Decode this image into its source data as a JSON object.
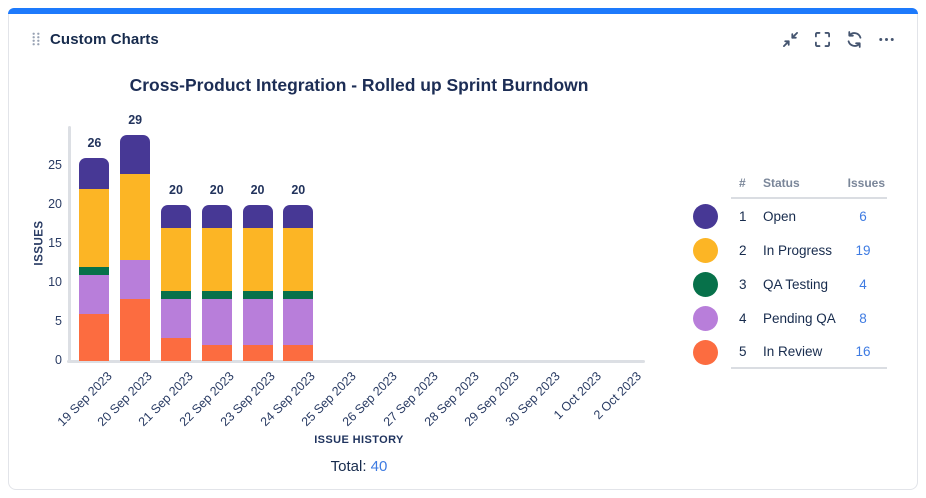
{
  "header": {
    "title": "Custom Charts",
    "accent_color": "#1d7afc",
    "actions": [
      {
        "name": "collapse",
        "icon": "collapse-icon"
      },
      {
        "name": "fullscreen",
        "icon": "fullscreen-icon"
      },
      {
        "name": "refresh",
        "icon": "refresh-icon"
      },
      {
        "name": "more",
        "icon": "ellipsis-icon"
      }
    ]
  },
  "chart_data": {
    "type": "bar",
    "stacked": true,
    "title": "Cross-Product Integration - Rolled up Sprint Burndown",
    "xlabel": "ISSUE HISTORY",
    "ylabel": "ISSUES",
    "ylim": [
      0,
      30
    ],
    "yticks": [
      0,
      5,
      10,
      15,
      20,
      25
    ],
    "grid": false,
    "legend_position": "right",
    "categories": [
      "19 Sep 2023",
      "20 Sep 2023",
      "21 Sep 2023",
      "22 Sep 2023",
      "23 Sep 2023",
      "24 Sep 2023",
      "25 Sep 2023",
      "26 Sep 2023",
      "27 Sep 2023",
      "28 Sep 2023",
      "29 Sep 2023",
      "30 Sep 2023",
      "1 Oct 2023",
      "2 Oct 2023"
    ],
    "series": [
      {
        "name": "In Review",
        "color": "#fc6c40",
        "values": [
          6,
          8,
          3,
          2,
          2,
          2,
          0,
          0,
          0,
          0,
          0,
          0,
          0,
          0
        ]
      },
      {
        "name": "Pending QA",
        "color": "#b87eda",
        "values": [
          5,
          5,
          5,
          6,
          6,
          6,
          0,
          0,
          0,
          0,
          0,
          0,
          0,
          0
        ]
      },
      {
        "name": "QA Testing",
        "color": "#07714a",
        "values": [
          1,
          0,
          1,
          1,
          1,
          1,
          0,
          0,
          0,
          0,
          0,
          0,
          0,
          0
        ]
      },
      {
        "name": "In Progress",
        "color": "#fcb525",
        "values": [
          10,
          11,
          8,
          8,
          8,
          8,
          0,
          0,
          0,
          0,
          0,
          0,
          0,
          0
        ]
      },
      {
        "name": "Open",
        "color": "#473895",
        "values": [
          4,
          5,
          3,
          3,
          3,
          3,
          0,
          0,
          0,
          0,
          0,
          0,
          0,
          0
        ]
      }
    ],
    "bar_total_labels": [
      "26",
      "29",
      "20",
      "20",
      "20",
      "20",
      "",
      "",
      "",
      "",
      "",
      "",
      "",
      ""
    ]
  },
  "legend": {
    "columns": [
      "#",
      "Status",
      "Issues"
    ],
    "rows": [
      {
        "rank": "1",
        "status": "Open",
        "issues": "6",
        "color": "#473895"
      },
      {
        "rank": "2",
        "status": "In Progress",
        "issues": "19",
        "color": "#fcb525"
      },
      {
        "rank": "3",
        "status": "QA Testing",
        "issues": "4",
        "color": "#07714a"
      },
      {
        "rank": "4",
        "status": "Pending QA",
        "issues": "8",
        "color": "#b87eda"
      },
      {
        "rank": "5",
        "status": "In Review",
        "issues": "16",
        "color": "#fc6c40"
      }
    ]
  },
  "footer": {
    "total_label": "Total:",
    "total_value": "40"
  }
}
